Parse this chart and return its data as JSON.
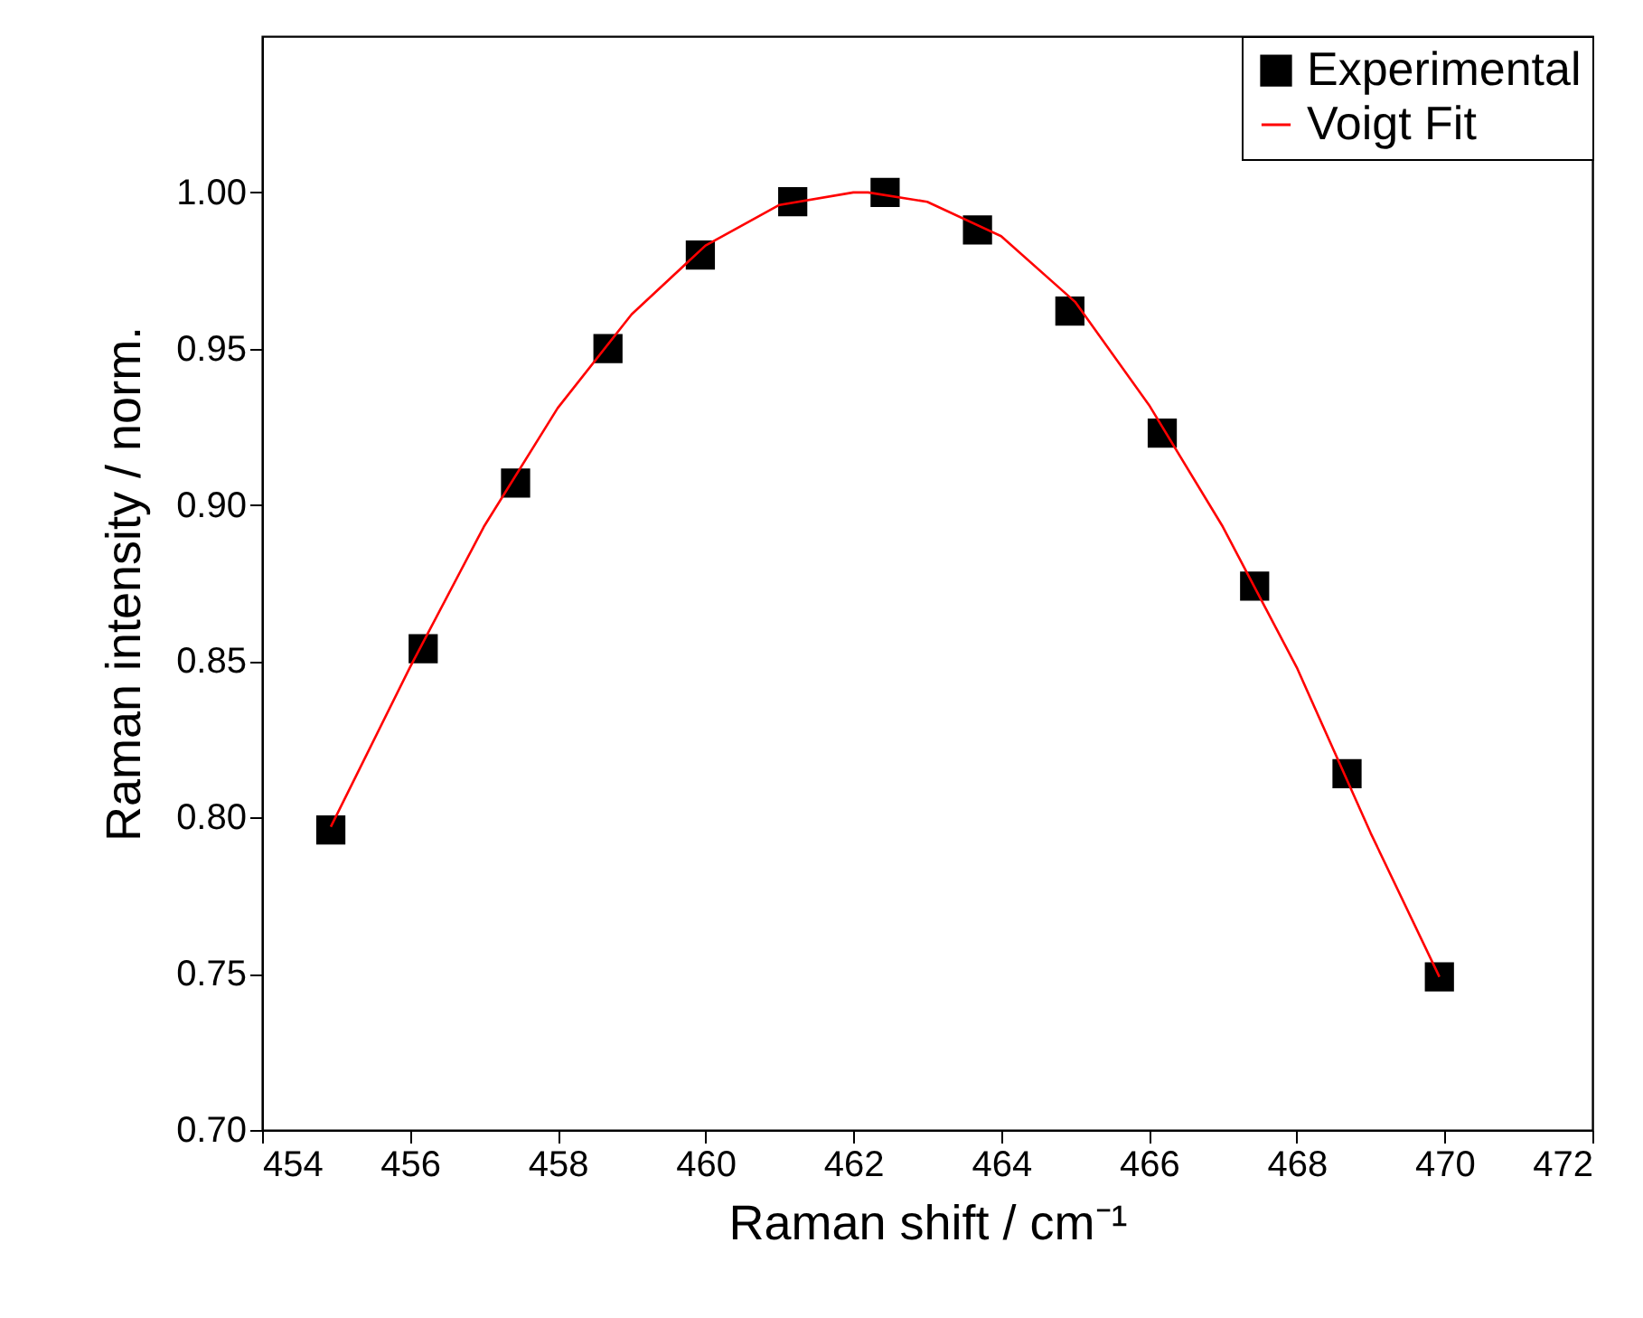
{
  "chart_data": {
    "type": "scatter",
    "xlabel": "Raman shift / cm⁻¹",
    "ylabel": "Raman intensity / norm.",
    "xlim": [
      454,
      472
    ],
    "xticks": [
      454,
      456,
      458,
      460,
      462,
      464,
      466,
      468,
      470,
      472
    ],
    "ylim": [
      0.7,
      1.05
    ],
    "yticks": [
      {
        "value": 0.7,
        "label": "0.70"
      },
      {
        "value": 0.75,
        "label": "0.75"
      },
      {
        "value": 0.8,
        "label": "0.80"
      },
      {
        "value": 0.85,
        "label": "0.85"
      },
      {
        "value": 0.9,
        "label": "0.90"
      },
      {
        "value": 0.95,
        "label": "0.95"
      },
      {
        "value": 1.0,
        "label": "1.00"
      }
    ],
    "grid": false,
    "legend": "top right",
    "series": [
      {
        "name": "Experimental",
        "color": "#000000",
        "marker": "square",
        "x": [
          454.93,
          456.18,
          457.43,
          458.68,
          459.93,
          461.18,
          462.43,
          463.68,
          464.93,
          466.18,
          467.43,
          468.68,
          469.93
        ],
        "values": [
          0.796,
          0.854,
          0.907,
          0.95,
          0.98,
          0.997,
          1.0,
          0.988,
          0.962,
          0.923,
          0.874,
          0.814,
          0.749
        ]
      },
      {
        "name": "Voigt Fit",
        "type": "line",
        "color": "#ff0000",
        "line_style": "solid",
        "x": [
          454.93,
          456,
          457,
          458,
          459,
          460,
          461,
          462,
          462.2,
          463,
          464,
          465,
          466,
          467,
          468,
          469,
          469.93
        ],
        "values": [
          0.797,
          0.848,
          0.893,
          0.931,
          0.961,
          0.983,
          0.996,
          1.0,
          1.0,
          0.997,
          0.986,
          0.965,
          0.932,
          0.893,
          0.848,
          0.795,
          0.749
        ]
      }
    ]
  }
}
